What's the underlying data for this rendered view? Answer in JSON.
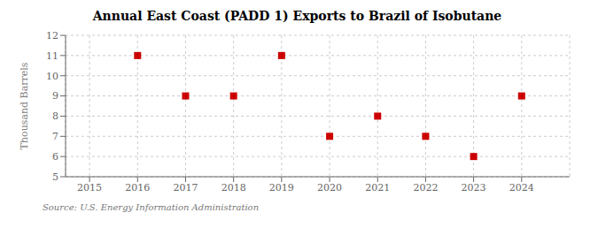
{
  "chart_data": {
    "type": "scatter",
    "title": "Annual East Coast (PADD 1) Exports to Brazil of Isobutane",
    "y_label": "Thousand Barrels",
    "annotations": [
      "Source: U.S. Energy Information Administration"
    ],
    "x": [
      2016,
      2017,
      2018,
      2019,
      2020,
      2021,
      2022,
      2023,
      2024
    ],
    "values": [
      11,
      9,
      9,
      11,
      7,
      8,
      7,
      6,
      9
    ],
    "xlim": [
      2014.5,
      2025.0
    ],
    "ylim": [
      5,
      12
    ],
    "xticks": [
      2015,
      2016,
      2017,
      2018,
      2019,
      2020,
      2021,
      2022,
      2023,
      2024
    ],
    "yticks": [
      5,
      6,
      7,
      8,
      9,
      10,
      11,
      12
    ],
    "color": "#cc0000",
    "marker": "square",
    "grid": true
  }
}
